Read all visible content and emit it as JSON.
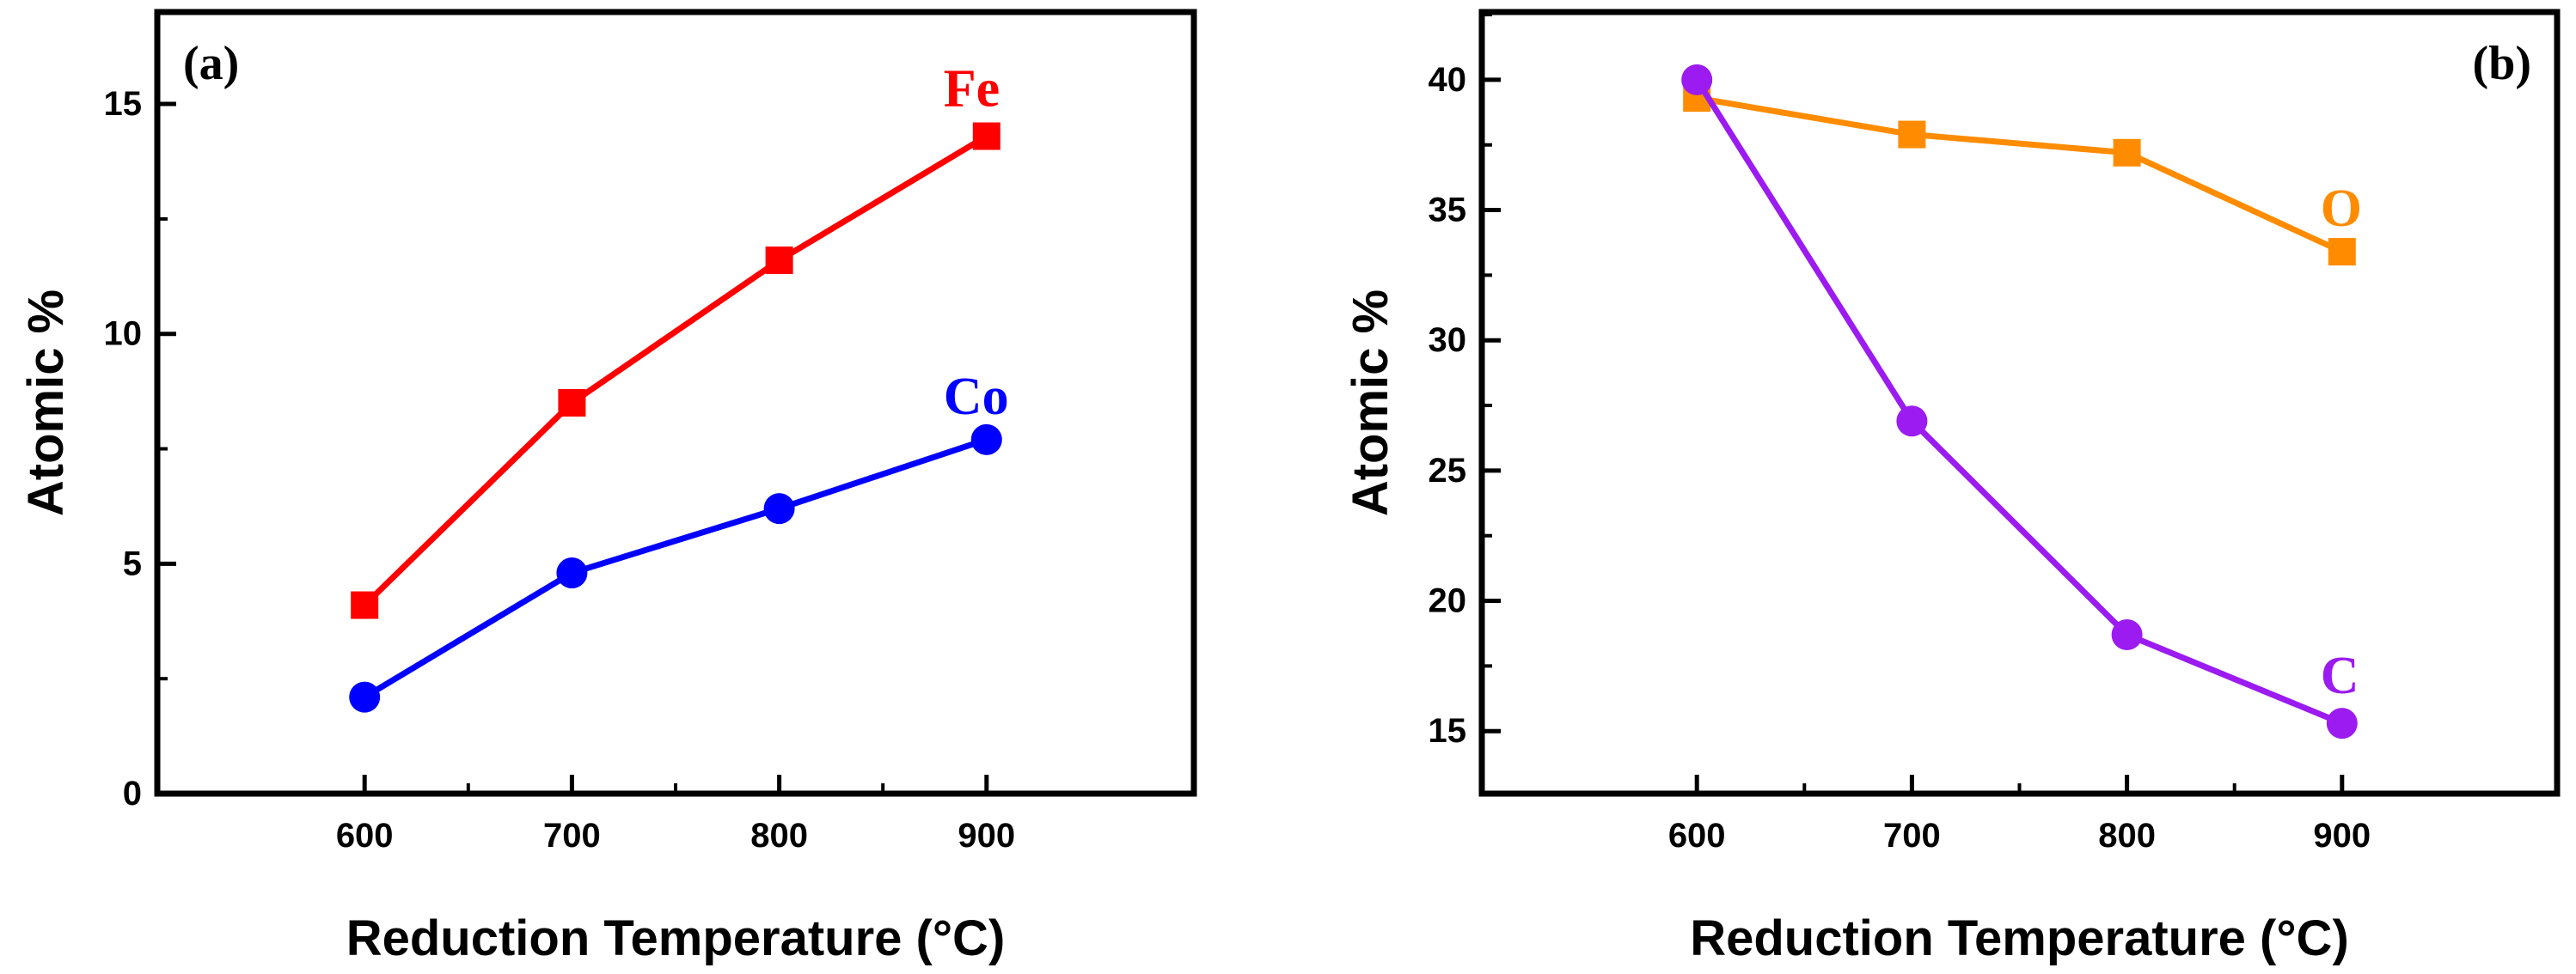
{
  "chart_data": [
    {
      "id": "a",
      "type": "line",
      "panel_label": "(a)",
      "xlabel": "Reduction Temperature (°C)",
      "ylabel": "Atomic %",
      "x": [
        600,
        700,
        800,
        900
      ],
      "xlim": [
        500,
        1000
      ],
      "xticks": [
        600,
        700,
        800,
        900
      ],
      "ylim": [
        0,
        17
      ],
      "yticks": [
        0,
        5,
        10,
        15
      ],
      "grid": false,
      "series": [
        {
          "name": "Fe",
          "label": "Fe",
          "color": "#ff0000",
          "marker": "square",
          "values": [
            4.1,
            8.5,
            11.6,
            14.3
          ]
        },
        {
          "name": "Co",
          "label": "Co",
          "color": "#0000ff",
          "marker": "circle",
          "values": [
            2.1,
            4.8,
            6.2,
            7.7
          ]
        }
      ]
    },
    {
      "id": "b",
      "type": "line",
      "panel_label": "(b)",
      "xlabel": "Reduction Temperature (°C)",
      "ylabel": "Atomic %",
      "x": [
        600,
        700,
        800,
        900
      ],
      "xlim": [
        500,
        1000
      ],
      "xticks": [
        600,
        700,
        800,
        900
      ],
      "ylim": [
        12.6,
        42.6
      ],
      "yticks": [
        15,
        20,
        25,
        30,
        35,
        40
      ],
      "grid": false,
      "series": [
        {
          "name": "O",
          "label": "O",
          "color": "#ff8c00",
          "marker": "square",
          "values": [
            39.3,
            37.9,
            37.2,
            33.4
          ]
        },
        {
          "name": "C",
          "label": "C",
          "color": "#9b1bf0",
          "marker": "circle",
          "values": [
            40.0,
            26.9,
            18.7,
            15.3
          ]
        }
      ]
    }
  ]
}
